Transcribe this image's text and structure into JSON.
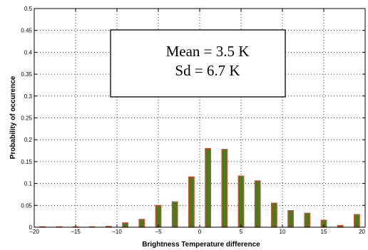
{
  "chart_data": {
    "type": "bar",
    "title": "",
    "xlabel": "Brightness Temperature difference",
    "ylabel": "Probability of occurence",
    "xlim": [
      -20,
      20
    ],
    "ylim": [
      0,
      0.5
    ],
    "x": [
      -19,
      -17,
      -15,
      -13,
      -11,
      -9,
      -7,
      -5,
      -3,
      -1,
      1,
      3,
      5,
      7,
      9,
      11,
      13,
      15,
      17,
      19
    ],
    "values": [
      0.0,
      0.0,
      0.0,
      0.0,
      0.002,
      0.01,
      0.018,
      0.05,
      0.058,
      0.115,
      0.18,
      0.178,
      0.117,
      0.106,
      0.055,
      0.038,
      0.032,
      0.016,
      0.004,
      0.029
    ],
    "x_ticks": [
      "-20",
      "-15",
      "-10",
      "-5",
      "0",
      "5",
      "10",
      "15",
      "20"
    ],
    "y_ticks": [
      "0",
      "0.05",
      "0.1",
      "0.15",
      "0.2",
      "0.25",
      "0.3",
      "0.35",
      "0.4",
      "0.45",
      "0.5"
    ],
    "grid": true,
    "legend": "none",
    "bar_fill_color": "#4a7a1e",
    "bar_edge_color": "#d2502a",
    "annotation": {
      "lines": [
        "Mean = 3.5 K",
        "Sd = 6.7 K"
      ]
    }
  }
}
